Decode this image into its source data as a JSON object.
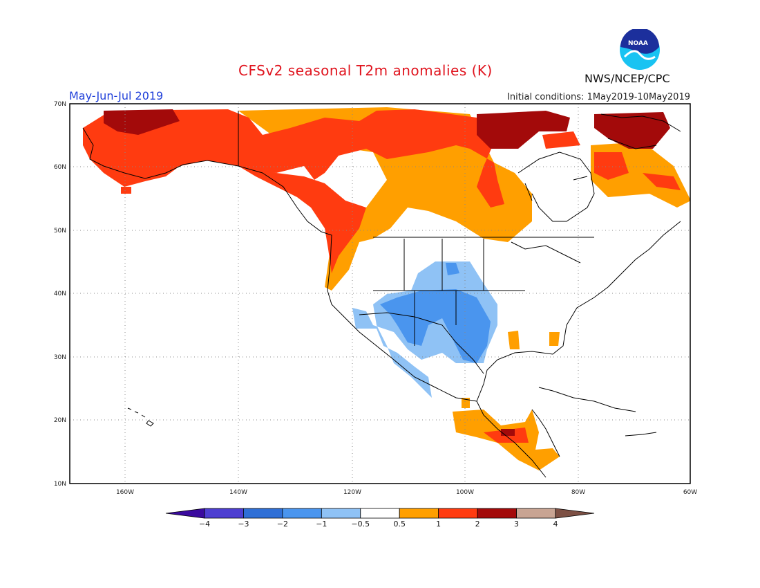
{
  "title": "CFSv2 seasonal T2m anomalies (K)",
  "season": "May-Jun-Jul 2019",
  "initial_conditions": "Initial conditions: 1May2019-10May2019",
  "agency": "NWS/NCEP/CPC",
  "logo_text": "NOAA",
  "lat_labels": [
    "70N",
    "60N",
    "50N",
    "40N",
    "30N",
    "20N",
    "10N"
  ],
  "lon_labels": [
    "160W",
    "140W",
    "120W",
    "100W",
    "80W",
    "60W"
  ],
  "colorbar": {
    "ticks": [
      "-4",
      "-3",
      "-2",
      "-1",
      "-0.5",
      "0.5",
      "1",
      "2",
      "3",
      "4"
    ],
    "colors": [
      "#3a0a9e",
      "#4d3ed1",
      "#2f6fd6",
      "#4a95ee",
      "#8fc2f5",
      "#ffffff",
      "#ff9f00",
      "#ff3b10",
      "#a30a0a",
      "#c8a493",
      "#7d5044"
    ]
  },
  "colors": {
    "title": "#e0141e",
    "season": "#1f3fd9",
    "anomaly_0.5_1": "#ff9f00",
    "anomaly_1_2": "#ff3b10",
    "anomaly_2_3": "#a30a0a",
    "anomaly_-1_-0.5": "#8fc2f5",
    "anomaly_-2_-1": "#4a95ee"
  }
}
